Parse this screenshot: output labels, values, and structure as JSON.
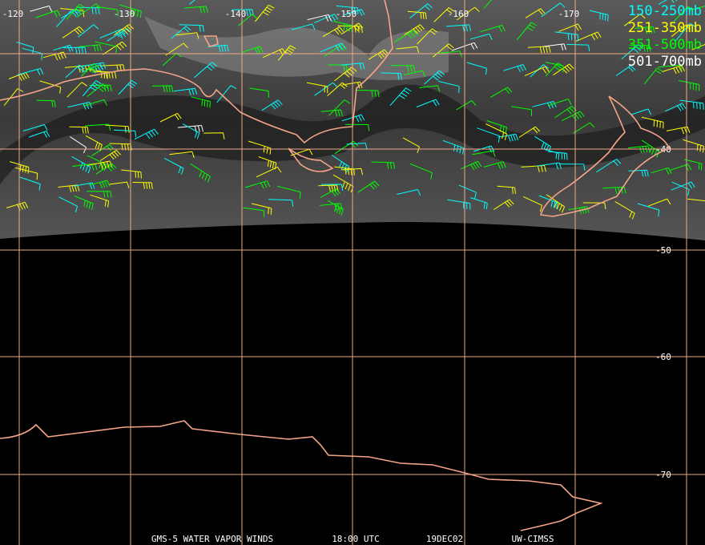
{
  "map": {
    "longitude_labels": [
      "-120",
      "-130",
      "-140",
      "-150",
      "-160",
      "-170"
    ],
    "latitude_labels": [
      "-40",
      "-50",
      "-60",
      "-70"
    ],
    "legend": [
      {
        "label": "150-250mb",
        "color": "#00ffff"
      },
      {
        "label": "251-350mb",
        "color": "#ffff00"
      },
      {
        "label": "351-500mb",
        "color": "#00ff00"
      },
      {
        "label": "501-700mb",
        "color": "#ffffff"
      }
    ],
    "footer": [
      "GMS-5 WATER VAPOR WINDS",
      "18:00 UTC",
      "19DEC02",
      "UW-CIMSS"
    ]
  }
}
